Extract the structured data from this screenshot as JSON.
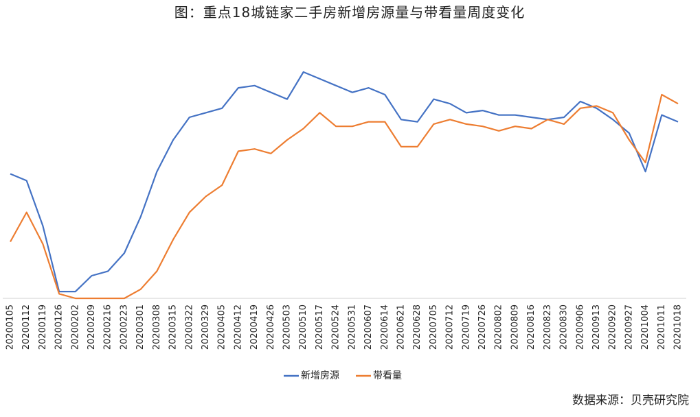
{
  "chart_data": {
    "type": "line",
    "title": "图：重点18城链家二手房新增房源量与带看量周度变化",
    "source": "数据来源：贝壳研究院",
    "categories": [
      "20200105",
      "20200112",
      "20200119",
      "20200126",
      "20200202",
      "20200209",
      "20200216",
      "20200223",
      "20200301",
      "20200308",
      "20200315",
      "20200322",
      "20200329",
      "20200405",
      "20200412",
      "20200419",
      "20200426",
      "20200503",
      "20200510",
      "20200517",
      "20200524",
      "20200531",
      "20200607",
      "20200614",
      "20200621",
      "20200628",
      "20200705",
      "20200712",
      "20200719",
      "20200726",
      "20200802",
      "20200809",
      "20200816",
      "20200823",
      "20200830",
      "20200906",
      "20200913",
      "20200920",
      "20200927",
      "20201004",
      "20201011",
      "20201018"
    ],
    "series": [
      {
        "name": "新增房源",
        "color": "#4472c4",
        "values": [
          55,
          52,
          32,
          3,
          3,
          10,
          12,
          20,
          36,
          56,
          70,
          80,
          82,
          84,
          93,
          94,
          91,
          88,
          100,
          97,
          94,
          91,
          93,
          90,
          79,
          78,
          88,
          86,
          82,
          83,
          81,
          81,
          80,
          79,
          80,
          87,
          84,
          79,
          73,
          56,
          81,
          78
        ]
      },
      {
        "name": "带看量",
        "color": "#ed7d31",
        "values": [
          25,
          38,
          24,
          2,
          0,
          0,
          0,
          0,
          4,
          12,
          26,
          38,
          45,
          50,
          65,
          66,
          64,
          70,
          75,
          82,
          76,
          76,
          78,
          78,
          67,
          67,
          77,
          79,
          77,
          76,
          74,
          76,
          75,
          79,
          77,
          84,
          85,
          82,
          70,
          60,
          90,
          86
        ]
      }
    ],
    "ylim": [
      0,
      110
    ],
    "legend": "bottom"
  }
}
